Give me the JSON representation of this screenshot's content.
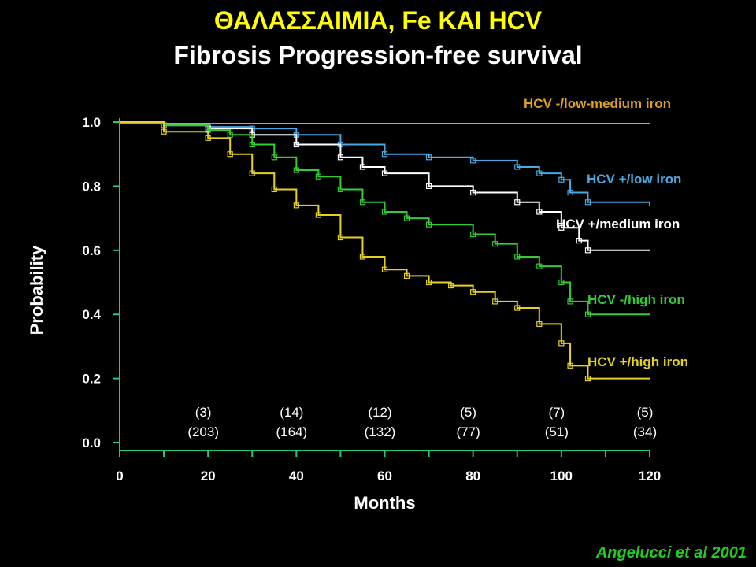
{
  "title": "ΘΑΛΑΣΣΑΙΜΙΑ, Fe ΚΑΙ HCV",
  "subtitle": "Fibrosis Progression-free survival",
  "citation": "Angelucci et al 2001",
  "colors": {
    "axis": "#22cc77",
    "hcv_neg_low_med": "#e0a020",
    "hcv_pos_low": "#4aa8e0",
    "hcv_pos_med": "#ffffff",
    "hcv_neg_high": "#33cc33",
    "hcv_pos_high": "#e6d21e"
  },
  "chart_data": {
    "type": "line",
    "xlabel": "Months",
    "ylabel": "Probability",
    "xlim": [
      0,
      120
    ],
    "ylim": [
      0.0,
      1.0
    ],
    "xticks": [
      0,
      20,
      40,
      60,
      80,
      100,
      120
    ],
    "yticks": [
      "0.0",
      "0.2",
      "0.4",
      "0.6",
      "0.8",
      "1.0"
    ],
    "grid": false,
    "legend": "inline labels at curve ends",
    "at_risk": {
      "x": [
        20,
        40,
        60,
        80,
        100,
        120
      ],
      "events": [
        "(3)",
        "(14)",
        "(12)",
        "(5)",
        "(7)",
        "(5)"
      ],
      "numbers": [
        "(203)",
        "(164)",
        "(132)",
        "(77)",
        "(51)",
        "(34)"
      ]
    },
    "series": [
      {
        "name": "HCV -/low-medium iron",
        "color": "#e0a020",
        "x": [
          0,
          120
        ],
        "y": [
          0.995,
          0.995
        ]
      },
      {
        "name": "HCV +/low iron",
        "color": "#4aa8e0",
        "x": [
          0,
          10,
          20,
          30,
          40,
          50,
          60,
          70,
          80,
          90,
          95,
          100,
          102,
          106,
          120
        ],
        "y": [
          1.0,
          0.99,
          0.985,
          0.98,
          0.96,
          0.93,
          0.9,
          0.89,
          0.88,
          0.86,
          0.84,
          0.82,
          0.78,
          0.75,
          0.74
        ]
      },
      {
        "name": "HCV +/medium iron",
        "color": "#ffffff",
        "x": [
          0,
          10,
          20,
          30,
          40,
          50,
          55,
          60,
          70,
          80,
          90,
          95,
          100,
          104,
          106,
          120
        ],
        "y": [
          1.0,
          0.99,
          0.98,
          0.96,
          0.93,
          0.89,
          0.86,
          0.84,
          0.8,
          0.78,
          0.75,
          0.72,
          0.67,
          0.63,
          0.6,
          0.6
        ]
      },
      {
        "name": "HCV -/high iron",
        "color": "#33cc33",
        "x": [
          0,
          10,
          20,
          25,
          30,
          35,
          40,
          45,
          50,
          55,
          60,
          65,
          70,
          80,
          85,
          90,
          95,
          100,
          102,
          106,
          120
        ],
        "y": [
          1.0,
          0.99,
          0.975,
          0.96,
          0.93,
          0.89,
          0.85,
          0.83,
          0.79,
          0.75,
          0.72,
          0.7,
          0.68,
          0.65,
          0.62,
          0.58,
          0.55,
          0.5,
          0.44,
          0.4,
          0.4
        ]
      },
      {
        "name": "HCV +/high iron",
        "color": "#e6d21e",
        "x": [
          0,
          10,
          20,
          25,
          30,
          35,
          40,
          45,
          50,
          55,
          60,
          65,
          70,
          75,
          80,
          85,
          90,
          95,
          100,
          102,
          106,
          120
        ],
        "y": [
          1.0,
          0.97,
          0.95,
          0.9,
          0.84,
          0.79,
          0.74,
          0.71,
          0.64,
          0.58,
          0.54,
          0.52,
          0.5,
          0.49,
          0.47,
          0.44,
          0.42,
          0.37,
          0.31,
          0.24,
          0.2,
          0.2
        ]
      }
    ]
  }
}
